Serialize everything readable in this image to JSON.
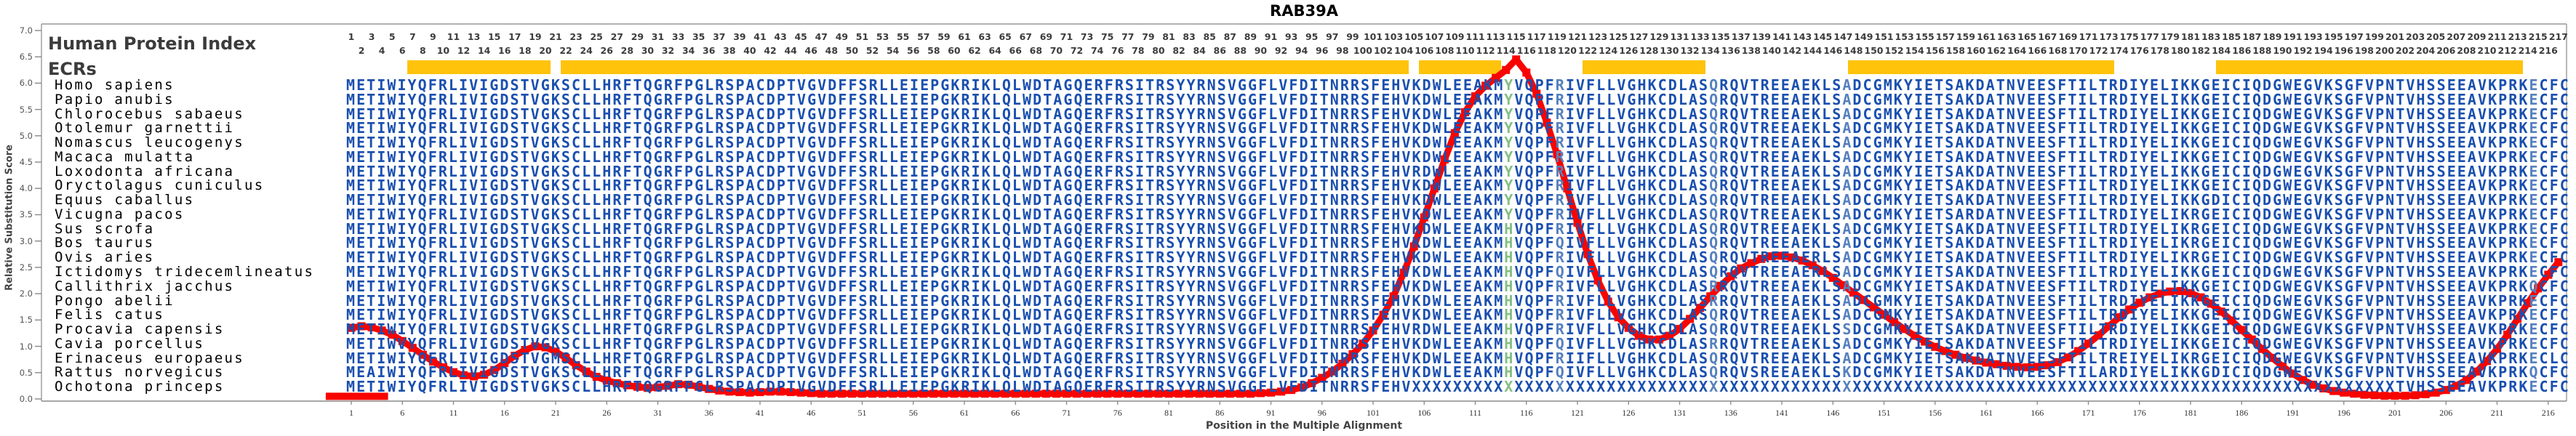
{
  "title": "RAB39A",
  "panel": {
    "index_label": "Human Protein Index",
    "ecr_label": "ECRs"
  },
  "y_axis": {
    "label": "Relative Substitution Score",
    "min": 0.0,
    "max": 7.0,
    "step": 0.5
  },
  "x_axis": {
    "label": "Position in the Multiple Alignment",
    "first_tick": 1,
    "tick_step": 5,
    "last_tick": 216
  },
  "colors": {
    "sequence_blue": "#1A4FAF",
    "sequence_light_blue": "#5580BE",
    "sequence_green": "#84BE84",
    "ecr_band_yellow": "#FFC30B",
    "curve_red": "#F80400",
    "header_gray": "#3B3B3B",
    "axis_text": "#444444",
    "column_numbers": "#3C3C3C"
  },
  "alignment": {
    "num_columns": 217,
    "human_sequence": "METIWIYQFRLIVIGDSTVGKSCLLHRFTQGRFPGLRSPACDPTVGVDFFSRLLEIEPGKRIKLQLWDTAGQERFRSITRSYYRNSVGGFLVFDITNRRSFEHVKDWLEEAKMYVQPFRIVFLLVGHKCDLASQRQVTREEAEKLSADCGMKYIETSAKDATNVEESFTILTRDIYELIKKGEICIQDGWEGVKSGFVPNTVHSSEEAVKPRKECFC",
    "green_columns": [
      114
    ],
    "light_columns": [
      119,
      134,
      147,
      214
    ],
    "ecr_segments": [
      [
        7,
        20
      ],
      [
        22,
        104
      ],
      [
        106,
        113
      ],
      [
        122,
        133
      ],
      [
        148,
        173
      ],
      [
        184,
        213
      ]
    ],
    "species": [
      {
        "name": "Homo sapiens",
        "variants": {}
      },
      {
        "name": "Papio anubis",
        "variants": {}
      },
      {
        "name": "Chlorocebus sabaeus",
        "variants": {}
      },
      {
        "name": "Otolemur garnettii",
        "variants": {}
      },
      {
        "name": "Nomascus leucogenys",
        "variants": {}
      },
      {
        "name": "Macaca mulatta",
        "variants": {}
      },
      {
        "name": "Loxodonta africana",
        "variants": {
          "105": "R"
        }
      },
      {
        "name": "Oryctolagus cuniculus",
        "variants": {}
      },
      {
        "name": "Equus caballus",
        "variants": {
          "183": "D"
        }
      },
      {
        "name": "Vicugna pacos",
        "variants": {
          "159": "R",
          "181": "R"
        }
      },
      {
        "name": "Sus scrofa",
        "variants": {
          "114": "H",
          "181": "R"
        }
      },
      {
        "name": "Bos taurus",
        "variants": {
          "114": "H",
          "119": "Q",
          "181": "R"
        }
      },
      {
        "name": "Ovis aries",
        "variants": {
          "114": "H",
          "144": "R",
          "181": "R"
        }
      },
      {
        "name": "Ictidomys tridecemlineatus",
        "variants": {
          "114": "H",
          "119": "Q",
          "144": "R"
        }
      },
      {
        "name": "Callithrix jacchus",
        "variants": {
          "114": "H",
          "134": "R",
          "214": "Q"
        }
      },
      {
        "name": "Pongo abelii",
        "variants": {
          "114": "H",
          "134": "R"
        }
      },
      {
        "name": "Felis catus",
        "variants": {
          "114": "H"
        }
      },
      {
        "name": "Procavia capensis",
        "variants": {
          "105": "R",
          "114": "H",
          "147": "S"
        }
      },
      {
        "name": "Cavia porcellus",
        "variants": {
          "6": "V",
          "114": "H",
          "119": "Q",
          "134": "R"
        }
      },
      {
        "name": "Erinaceus europaeus",
        "variants": {
          "21": "M",
          "114": "H",
          "121": "I",
          "174": "E",
          "181": "R",
          "216": "L"
        }
      },
      {
        "name": "Rattus norvegicus",
        "variants": {
          "3": "A",
          "114": "H",
          "119": "Q",
          "138": "S",
          "147": "K",
          "172": "A",
          "183": "D",
          "214": "Q"
        }
      },
      {
        "name": "Ochotona princeps",
        "variants": {},
        "unknown_range": [
          105,
          200
        ]
      }
    ]
  },
  "chart_data": {
    "type": "line",
    "title": "RAB39A",
    "xlabel": "Position in the Multiple Alignment",
    "ylabel": "Relative Substitution Score",
    "ylim": [
      0.0,
      7.0
    ],
    "x_range": [
      1,
      217
    ],
    "grid": false,
    "legend_position": "none",
    "series": [
      {
        "name": "Relative Substitution Score",
        "values": [
          1.35,
          1.38,
          1.36,
          1.3,
          1.22,
          1.1,
          0.97,
          0.84,
          0.71,
          0.6,
          0.51,
          0.45,
          0.43,
          0.46,
          0.55,
          0.68,
          0.82,
          0.93,
          1.0,
          0.98,
          0.9,
          0.78,
          0.64,
          0.52,
          0.42,
          0.35,
          0.3,
          0.26,
          0.23,
          0.21,
          0.22,
          0.25,
          0.28,
          0.27,
          0.23,
          0.19,
          0.16,
          0.14,
          0.13,
          0.12,
          0.13,
          0.14,
          0.14,
          0.13,
          0.12,
          0.11,
          0.1,
          0.1,
          0.1,
          0.1,
          0.1,
          0.1,
          0.1,
          0.1,
          0.1,
          0.1,
          0.1,
          0.1,
          0.1,
          0.1,
          0.1,
          0.1,
          0.1,
          0.1,
          0.1,
          0.1,
          0.1,
          0.1,
          0.1,
          0.1,
          0.1,
          0.1,
          0.1,
          0.1,
          0.1,
          0.1,
          0.1,
          0.1,
          0.1,
          0.1,
          0.1,
          0.1,
          0.1,
          0.1,
          0.1,
          0.1,
          0.1,
          0.1,
          0.1,
          0.11,
          0.12,
          0.14,
          0.17,
          0.22,
          0.3,
          0.4,
          0.52,
          0.67,
          0.85,
          1.05,
          1.3,
          1.6,
          1.95,
          2.4,
          2.9,
          3.45,
          4.0,
          4.55,
          5.05,
          5.45,
          5.75,
          5.95,
          6.1,
          6.25,
          6.45,
          6.2,
          5.8,
          5.25,
          4.65,
          4.0,
          3.35,
          2.75,
          2.25,
          1.85,
          1.55,
          1.35,
          1.2,
          1.13,
          1.13,
          1.2,
          1.33,
          1.52,
          1.73,
          1.95,
          2.15,
          2.33,
          2.48,
          2.58,
          2.66,
          2.71,
          2.72,
          2.69,
          2.63,
          2.54,
          2.43,
          2.3,
          2.16,
          2.02,
          1.88,
          1.74,
          1.6,
          1.46,
          1.33,
          1.2,
          1.09,
          0.99,
          0.91,
          0.84,
          0.78,
          0.73,
          0.69,
          0.66,
          0.63,
          0.61,
          0.6,
          0.61,
          0.64,
          0.7,
          0.79,
          0.91,
          1.05,
          1.21,
          1.38,
          1.55,
          1.7,
          1.83,
          1.93,
          2.0,
          2.04,
          2.05,
          2.01,
          1.93,
          1.81,
          1.66,
          1.49,
          1.31,
          1.13,
          0.95,
          0.78,
          0.62,
          0.48,
          0.36,
          0.27,
          0.2,
          0.15,
          0.12,
          0.1,
          0.08,
          0.07,
          0.06,
          0.06,
          0.06,
          0.07,
          0.09,
          0.12,
          0.17,
          0.25,
          0.36,
          0.52,
          0.72,
          0.95,
          1.22,
          1.52,
          1.82,
          2.1,
          2.36,
          2.6
        ]
      }
    ],
    "baseline_segment": {
      "col_start": -1.5,
      "col_end": 4.6,
      "score": 0.05
    }
  }
}
